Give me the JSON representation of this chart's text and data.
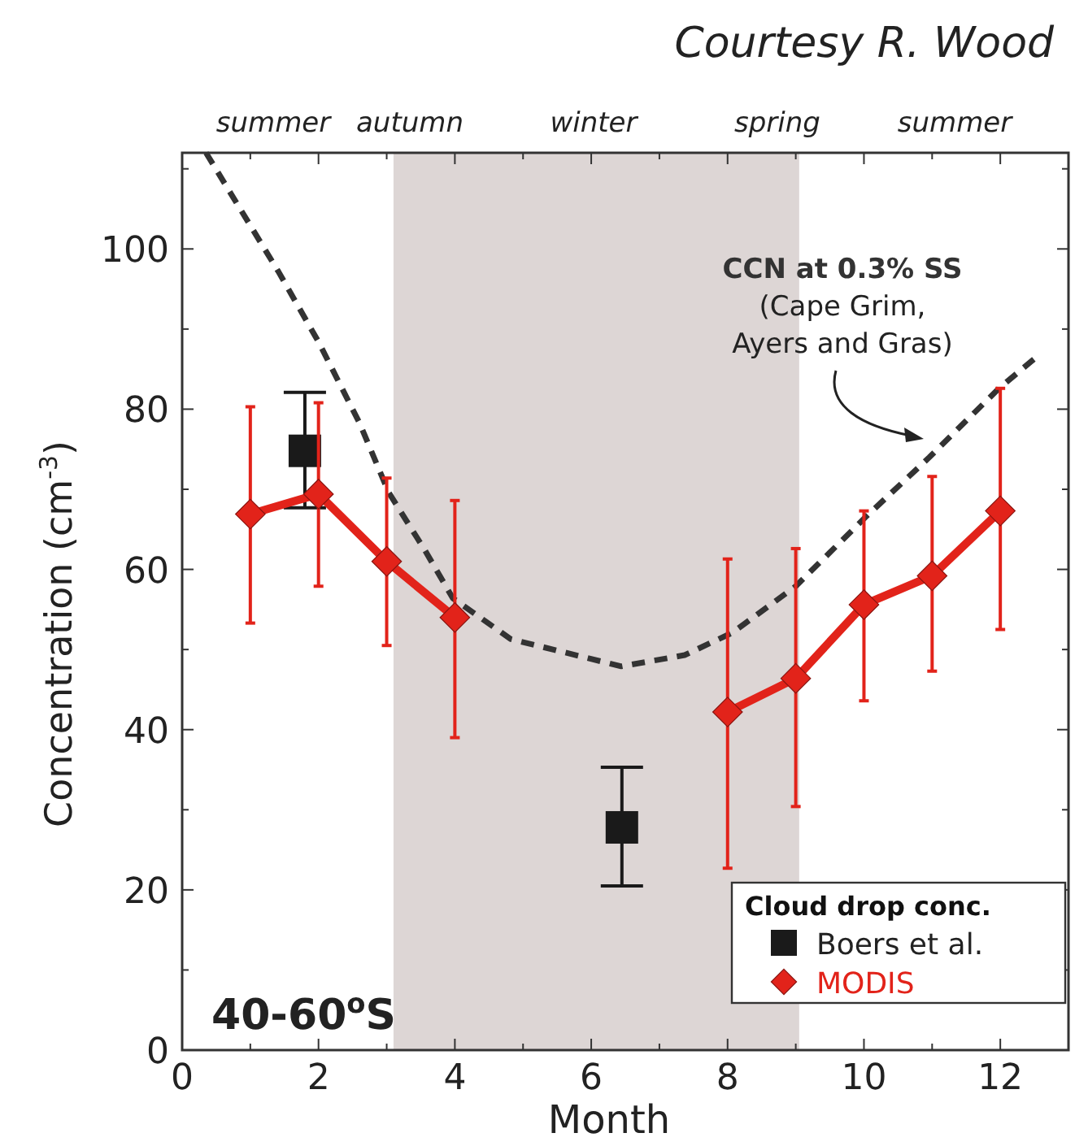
{
  "chart_data": {
    "type": "line",
    "xlabel": "Month",
    "ylabel": "Concentration (cm$^{-3}$)",
    "legend_title": "Cloud drop conc.",
    "legend": "bottom right",
    "xlim": [
      0,
      13
    ],
    "ylim": [
      0,
      112
    ],
    "xticks": [
      0,
      {
        "value": 1,
        "label": null
      },
      2,
      {
        "value": 3,
        "label": null
      },
      4,
      {
        "value": 5,
        "label": null
      },
      6,
      {
        "value": 7,
        "label": null
      },
      8,
      {
        "value": 9,
        "label": null
      },
      10,
      {
        "value": 11,
        "label": null
      },
      12
    ],
    "yticks": [
      0,
      {
        "value": 10,
        "label": null
      },
      20,
      {
        "value": 30,
        "label": null
      },
      40,
      {
        "value": 50,
        "label": null
      },
      60,
      {
        "value": 70,
        "label": null
      },
      80,
      {
        "value": 90,
        "label": null
      },
      100,
      {
        "value": 110,
        "label": null
      }
    ],
    "grid": false,
    "bands": [
      {
        "axis": "x",
        "from": 3.1,
        "to": 9.05,
        "color": "#ddd6d5"
      }
    ],
    "series": [
      {
        "name": "CCN at 0.3% SS",
        "color": "#333333",
        "line_style": "dashed",
        "marker": "none",
        "x": [
          0.35,
          1.41,
          2.0,
          2.6,
          3.03,
          3.56,
          3.97,
          4.82,
          6.44,
          7.37,
          8.07,
          9.0,
          10.02,
          10.96,
          11.98,
          12.6
        ],
        "values": [
          112,
          97.2,
          88.4,
          78.3,
          69.6,
          62.4,
          56.4,
          51.3,
          47.9,
          49.3,
          52.1,
          57.9,
          66.5,
          74,
          82.6,
          87
        ]
      },
      {
        "name": "Boers et al.",
        "type": "scatter",
        "color": "#1a1a1a",
        "marker": "square",
        "x": [
          1.8,
          6.45
        ],
        "values": [
          74.8,
          27.8
        ],
        "errors": [
          [
            67.7,
            82.1
          ],
          [
            20.5,
            35.3
          ]
        ]
      },
      {
        "name": "MODIS",
        "color": "#e2231a",
        "marker": "diamond",
        "line_style": "solid",
        "x": [
          1,
          2,
          3,
          4,
          5,
          6,
          7,
          8,
          9,
          10,
          11,
          12
        ],
        "values": [
          66.9,
          69.4,
          61,
          54,
          null,
          null,
          null,
          42.2,
          46.4,
          55.6,
          59.2,
          67.3
        ],
        "errors": [
          [
            53.3,
            80.3
          ],
          [
            57.9,
            80.8
          ],
          [
            50.5,
            71.4
          ],
          [
            39,
            68.6
          ],
          null,
          null,
          null,
          [
            22.7,
            61.3
          ],
          [
            30.4,
            62.6
          ],
          [
            43.6,
            67.3
          ],
          [
            47.3,
            71.6
          ],
          [
            52.5,
            82.6
          ]
        ]
      }
    ],
    "annotations": [
      "Courtesy R. Wood",
      "summer",
      "autumn",
      "winter",
      "spring",
      "summer",
      "40-60$^{o}$S",
      "(Cape Grim,",
      "Ayers and Gras)"
    ]
  }
}
